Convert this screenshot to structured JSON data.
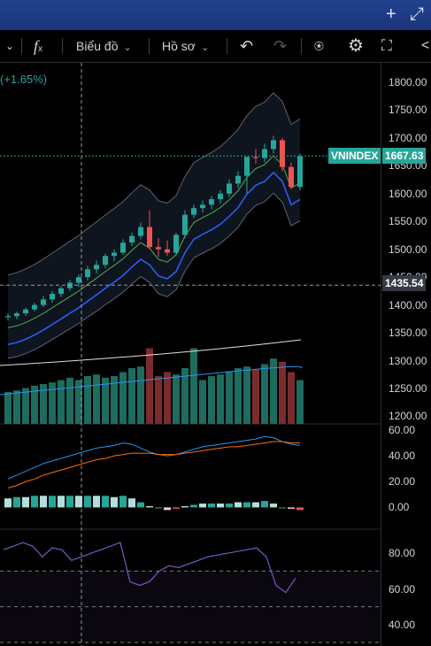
{
  "topbar": {
    "plus_icon": "+",
    "expand_icon": "⤢"
  },
  "toolbar": {
    "chev_left": "⌄",
    "fx_label": "f",
    "fx_sub": "x",
    "chart_label": "Biểu đồ",
    "profile_label": "Hồ sơ",
    "undo_icon": "↶",
    "redo_icon": "↷",
    "snapshot_icon": "⍟",
    "settings_icon": "⚙",
    "fullscreen_icon": "⛶",
    "share_icon": "<"
  },
  "price_change": "(+1.65%)",
  "main_scale": {
    "ticks": [
      "1800.00",
      "1750.00",
      "1700.00",
      "1650.00",
      "1600.00",
      "1550.00",
      "1500.00",
      "1450.00",
      "1400.00",
      "1350.00",
      "1300.00",
      "1250.00",
      "1200.00"
    ]
  },
  "macd_scale": {
    "ticks": [
      "60.00",
      "40.00",
      "20.00",
      "0.00"
    ]
  },
  "rsi_scale": {
    "ticks": [
      "80.00",
      "60.00",
      "40.00"
    ]
  },
  "symbol_tag": "VNINDEX",
  "last_price": "1667.63",
  "crosshair_price": "1435.54",
  "colors": {
    "up": "#26a69a",
    "down": "#ef5350",
    "accent": "#1e3a8a",
    "rsi": "#7e57c2"
  },
  "chart_data": {
    "type": "candlestick",
    "ylim": [
      1180,
      1820
    ],
    "candles": [
      [
        1378,
        1385,
        1372,
        1380
      ],
      [
        1380,
        1388,
        1374,
        1385
      ],
      [
        1385,
        1395,
        1380,
        1392
      ],
      [
        1392,
        1404,
        1388,
        1400
      ],
      [
        1400,
        1416,
        1396,
        1410
      ],
      [
        1410,
        1425,
        1404,
        1420
      ],
      [
        1420,
        1434,
        1414,
        1430
      ],
      [
        1430,
        1445,
        1425,
        1440
      ],
      [
        1440,
        1455,
        1432,
        1450
      ],
      [
        1450,
        1470,
        1444,
        1464
      ],
      [
        1464,
        1480,
        1456,
        1472
      ],
      [
        1472,
        1492,
        1466,
        1488
      ],
      [
        1488,
        1500,
        1478,
        1494
      ],
      [
        1494,
        1518,
        1490,
        1512
      ],
      [
        1512,
        1530,
        1506,
        1524
      ],
      [
        1524,
        1548,
        1518,
        1540
      ],
      [
        1540,
        1570,
        1500,
        1504
      ],
      [
        1504,
        1520,
        1486,
        1500
      ],
      [
        1500,
        1516,
        1488,
        1494
      ],
      [
        1494,
        1530,
        1490,
        1526
      ],
      [
        1526,
        1570,
        1520,
        1562
      ],
      [
        1562,
        1580,
        1556,
        1574
      ],
      [
        1574,
        1588,
        1566,
        1580
      ],
      [
        1580,
        1596,
        1572,
        1590
      ],
      [
        1590,
        1606,
        1582,
        1600
      ],
      [
        1600,
        1626,
        1594,
        1618
      ],
      [
        1618,
        1640,
        1610,
        1632
      ],
      [
        1632,
        1664,
        1600,
        1666
      ],
      [
        1666,
        1680,
        1654,
        1664
      ],
      [
        1664,
        1690,
        1656,
        1680
      ],
      [
        1680,
        1704,
        1672,
        1696
      ],
      [
        1696,
        1700,
        1640,
        1648
      ],
      [
        1648,
        1656,
        1608,
        1612
      ],
      [
        1612,
        1672,
        1606,
        1667
      ]
    ],
    "macd_range": [
      -10,
      62
    ],
    "macd": [
      22,
      25,
      28,
      31,
      34,
      36,
      38,
      40,
      42,
      44,
      46,
      47,
      48,
      50,
      49,
      46,
      43,
      41,
      40,
      41,
      43,
      45,
      47,
      48,
      49,
      50,
      51,
      52,
      53,
      55,
      54,
      51,
      49,
      48
    ],
    "signal": [
      15,
      17,
      20,
      22,
      25,
      27,
      29,
      31,
      33,
      35,
      37,
      38,
      40,
      41,
      42,
      42,
      42,
      41,
      41,
      41,
      42,
      43,
      44,
      45,
      46,
      47,
      47,
      48,
      49,
      50,
      51,
      51,
      50,
      50
    ],
    "histogram": [
      7,
      8,
      8,
      9,
      9,
      9,
      9,
      9,
      9,
      9,
      9,
      9,
      8,
      9,
      7,
      4,
      1,
      0,
      -2,
      -1,
      1,
      2,
      3,
      3,
      3,
      3,
      4,
      4,
      4,
      5,
      3,
      0,
      -1,
      -2
    ],
    "rsi_range": [
      30,
      92
    ],
    "rsi": [
      82,
      84,
      86,
      84,
      78,
      83,
      82,
      76,
      78,
      80,
      82,
      84,
      86,
      64,
      62,
      64,
      70,
      73,
      72,
      74,
      76,
      78,
      79,
      80,
      81,
      82,
      83,
      78,
      62,
      58,
      66
    ]
  }
}
